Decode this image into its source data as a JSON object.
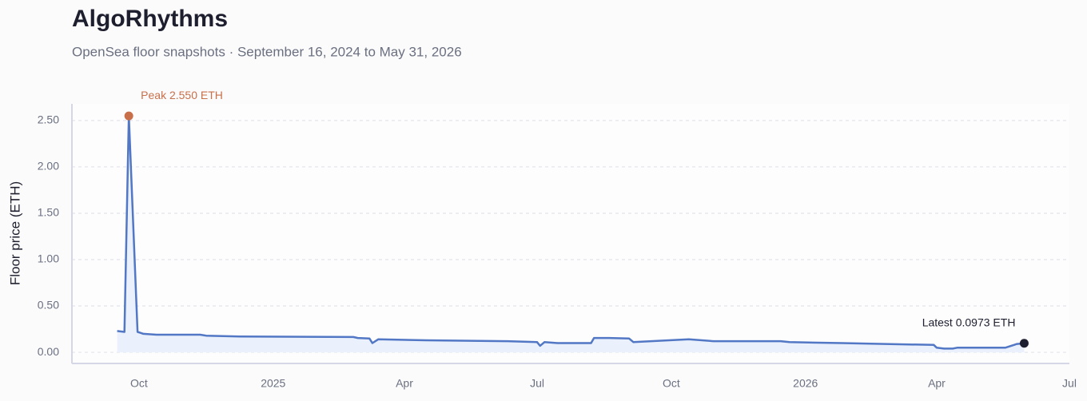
{
  "chart_data": {
    "type": "line",
    "title": "AlgoRhythms",
    "subtitle": "OpenSea floor snapshots · September 16, 2024 to May 31, 2026",
    "y_label": "Floor price (ETH)",
    "x": [
      "2024-09-16",
      "2024-09-21",
      "2024-09-24",
      "2024-09-30",
      "2024-10-02",
      "2024-10-04",
      "2024-10-13",
      "2024-11-12",
      "2024-11-16",
      "2024-12-09",
      "2025-02-25",
      "2025-02-28",
      "2025-03-08",
      "2025-03-10",
      "2025-03-14",
      "2025-04-16",
      "2025-06-10",
      "2025-07-01",
      "2025-07-03",
      "2025-07-06",
      "2025-07-15",
      "2025-08-07",
      "2025-08-09",
      "2025-08-19",
      "2025-09-02",
      "2025-09-05",
      "2025-10-13",
      "2025-10-30",
      "2025-12-15",
      "2025-12-21",
      "2026-01-26",
      "2026-03-30",
      "2026-04-01",
      "2026-04-06",
      "2026-04-12",
      "2026-04-15",
      "2026-05-18",
      "2026-05-26",
      "2026-05-31"
    ],
    "series": [
      {
        "name": "Floor price",
        "color": "#5277c4",
        "fill": "#eaf1fd",
        "values": [
          0.23,
          0.22,
          2.55,
          0.22,
          0.21,
          0.2,
          0.19,
          0.19,
          0.18,
          0.17,
          0.165,
          0.155,
          0.15,
          0.1,
          0.14,
          0.13,
          0.12,
          0.11,
          0.07,
          0.11,
          0.1,
          0.1,
          0.155,
          0.155,
          0.15,
          0.11,
          0.14,
          0.12,
          0.12,
          0.11,
          0.1,
          0.08,
          0.05,
          0.04,
          0.04,
          0.05,
          0.05,
          0.09,
          0.0973
        ]
      }
    ],
    "xlim": [
      "2024-08-16",
      "2026-07-01"
    ],
    "xticks": [
      {
        "value": "2024-10-01",
        "label": "Oct"
      },
      {
        "value": "2025-01-01",
        "label": "2025"
      },
      {
        "value": "2025-04-01",
        "label": "Apr"
      },
      {
        "value": "2025-07-01",
        "label": "Jul"
      },
      {
        "value": "2025-10-01",
        "label": "Oct"
      },
      {
        "value": "2026-01-01",
        "label": "2026"
      },
      {
        "value": "2026-04-01",
        "label": "Apr"
      },
      {
        "value": "2026-07-01",
        "label": "Jul"
      }
    ],
    "ylim": [
      -0.12,
      2.68
    ],
    "yticks": [
      {
        "value": 0,
        "label": "0.00"
      },
      {
        "value": 0.5,
        "label": "0.50"
      },
      {
        "value": 1,
        "label": "1.00"
      },
      {
        "value": 1.5,
        "label": "1.50"
      },
      {
        "value": 2,
        "label": "2.00"
      },
      {
        "value": 2.5,
        "label": "2.50"
      }
    ],
    "grid": true,
    "annotations": [
      {
        "text": "Peak 2.550 ETH",
        "x": "2024-09-24",
        "y": 2.55,
        "color": "#c8704a"
      },
      {
        "text": "Latest 0.0973 ETH",
        "x": "2026-05-31",
        "y": 0.0973,
        "color": "#1e1f2e"
      }
    ]
  }
}
